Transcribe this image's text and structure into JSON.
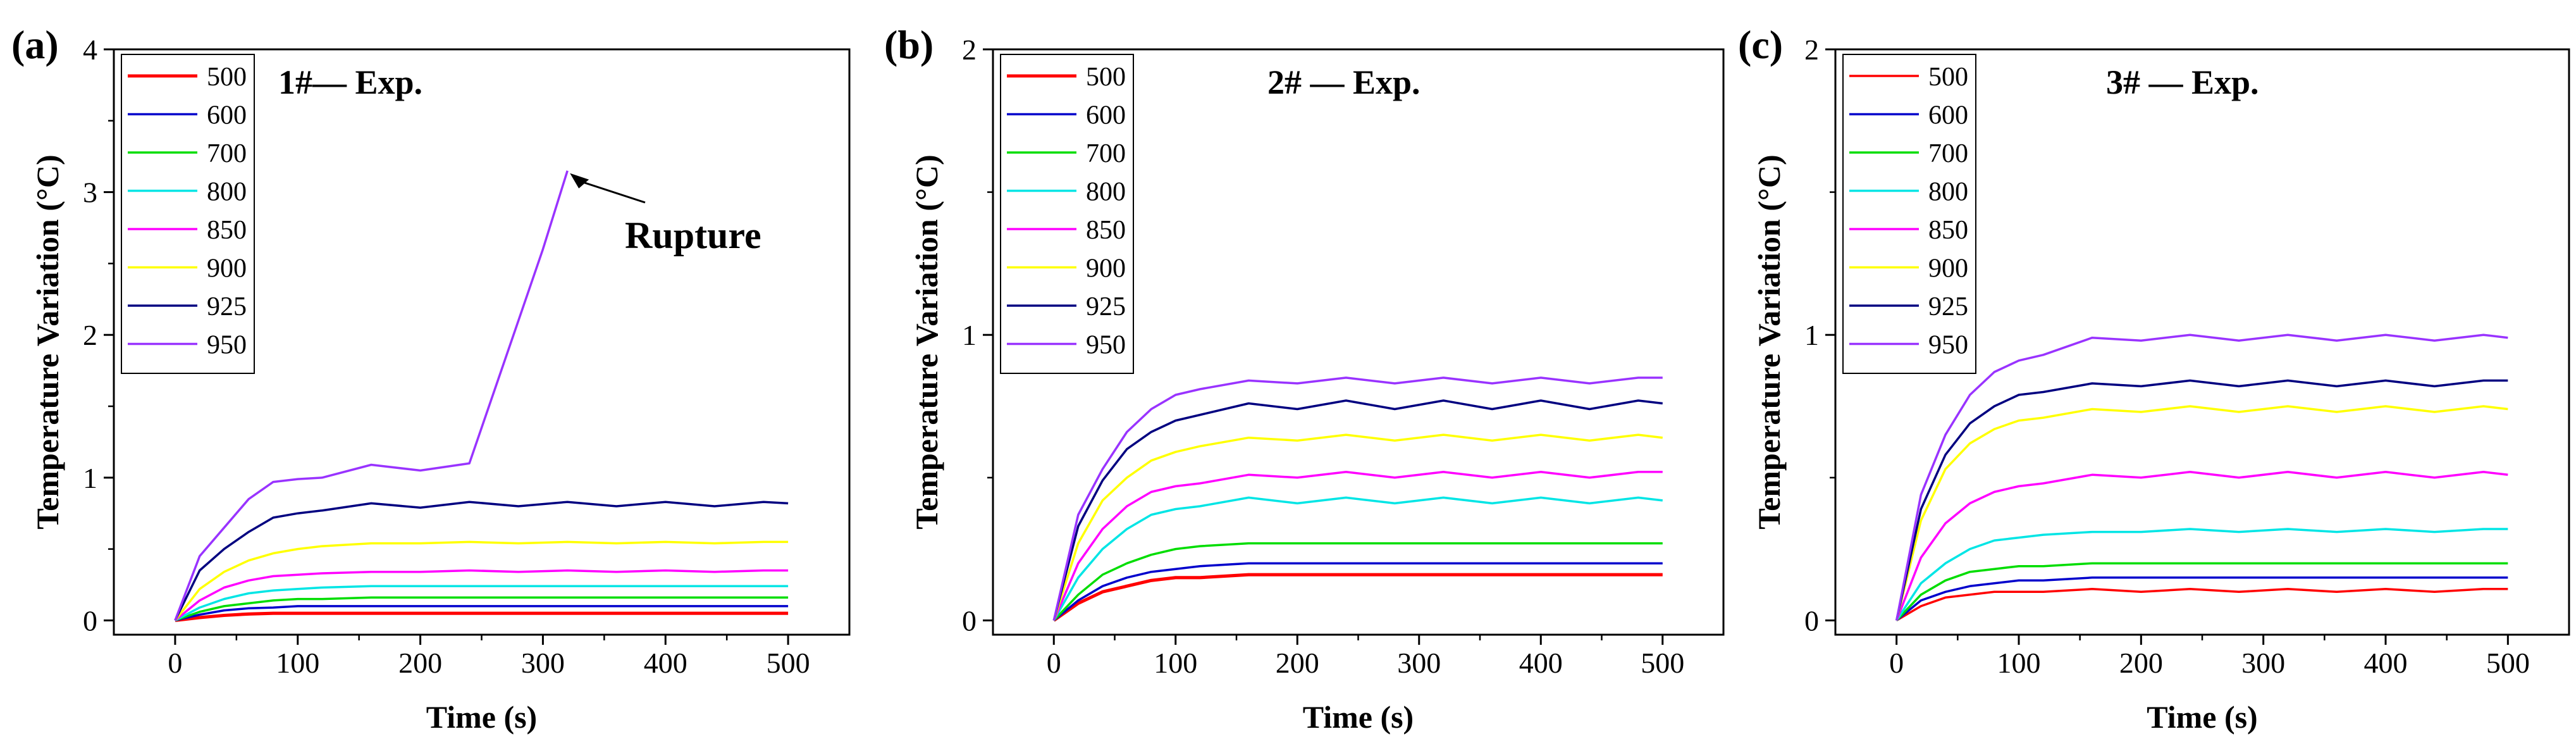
{
  "figure": {
    "description_free": true
  },
  "chart_data": [
    {
      "panel_label": "(a)",
      "type": "line",
      "annotation_title": "1#— Exp.",
      "xlabel": "Time (s)",
      "ylabel": "Temperature Variation (°C)",
      "xlim": [
        -50,
        550
      ],
      "ylim": [
        -0.1,
        4
      ],
      "xticks": [
        0,
        100,
        200,
        300,
        400,
        500
      ],
      "yticks": [
        0,
        1,
        2,
        3,
        4
      ],
      "callout": {
        "text": "Rupture",
        "x": 320,
        "y": 3.15
      },
      "legend_position": "top-left",
      "series": [
        {
          "name": "500",
          "color": "#ff0000",
          "width": 3.2,
          "x": [
            0,
            20,
            40,
            60,
            80,
            100,
            120,
            160,
            200,
            240,
            280,
            320,
            360,
            400,
            440,
            480,
            500
          ],
          "y": [
            0,
            0.02,
            0.035,
            0.045,
            0.05,
            0.05,
            0.05,
            0.05,
            0.05,
            0.05,
            0.05,
            0.05,
            0.05,
            0.05,
            0.05,
            0.05,
            0.05
          ]
        },
        {
          "name": "600",
          "color": "#0000cc",
          "width": 2.2,
          "x": [
            0,
            20,
            40,
            60,
            80,
            100,
            120,
            160,
            200,
            240,
            280,
            320,
            360,
            400,
            440,
            480,
            500
          ],
          "y": [
            0,
            0.04,
            0.07,
            0.085,
            0.09,
            0.1,
            0.1,
            0.1,
            0.1,
            0.1,
            0.1,
            0.1,
            0.1,
            0.1,
            0.1,
            0.1,
            0.1
          ]
        },
        {
          "name": "700",
          "color": "#00dd00",
          "width": 2.2,
          "x": [
            0,
            20,
            40,
            60,
            80,
            100,
            120,
            160,
            200,
            240,
            280,
            320,
            360,
            400,
            440,
            480,
            500
          ],
          "y": [
            0,
            0.06,
            0.1,
            0.12,
            0.14,
            0.15,
            0.15,
            0.16,
            0.16,
            0.16,
            0.16,
            0.16,
            0.16,
            0.16,
            0.16,
            0.16,
            0.16
          ]
        },
        {
          "name": "800",
          "color": "#00e5e5",
          "width": 2.2,
          "x": [
            0,
            20,
            40,
            60,
            80,
            100,
            120,
            160,
            200,
            240,
            280,
            320,
            360,
            400,
            440,
            480,
            500
          ],
          "y": [
            0,
            0.09,
            0.15,
            0.19,
            0.21,
            0.22,
            0.23,
            0.24,
            0.24,
            0.24,
            0.24,
            0.24,
            0.24,
            0.24,
            0.24,
            0.24,
            0.24
          ]
        },
        {
          "name": "850",
          "color": "#ff00ff",
          "width": 2.2,
          "x": [
            0,
            20,
            40,
            60,
            80,
            100,
            120,
            160,
            200,
            240,
            280,
            320,
            360,
            400,
            440,
            480,
            500
          ],
          "y": [
            0,
            0.14,
            0.23,
            0.28,
            0.31,
            0.32,
            0.33,
            0.34,
            0.34,
            0.35,
            0.34,
            0.35,
            0.34,
            0.35,
            0.34,
            0.35,
            0.35
          ]
        },
        {
          "name": "900",
          "color": "#ffff00",
          "width": 2.2,
          "x": [
            0,
            20,
            40,
            60,
            80,
            100,
            120,
            160,
            200,
            240,
            280,
            320,
            360,
            400,
            440,
            480,
            500
          ],
          "y": [
            0,
            0.22,
            0.34,
            0.42,
            0.47,
            0.5,
            0.52,
            0.54,
            0.54,
            0.55,
            0.54,
            0.55,
            0.54,
            0.55,
            0.54,
            0.55,
            0.55
          ]
        },
        {
          "name": "925",
          "color": "#000080",
          "width": 2.2,
          "x": [
            0,
            20,
            40,
            60,
            80,
            100,
            120,
            160,
            200,
            240,
            280,
            320,
            360,
            400,
            440,
            480,
            500
          ],
          "y": [
            0,
            0.35,
            0.5,
            0.62,
            0.72,
            0.75,
            0.77,
            0.82,
            0.79,
            0.83,
            0.8,
            0.83,
            0.8,
            0.83,
            0.8,
            0.83,
            0.82
          ]
        },
        {
          "name": "950",
          "color": "#9933ff",
          "width": 2.2,
          "x": [
            0,
            20,
            40,
            60,
            80,
            100,
            120,
            160,
            200,
            240,
            260,
            280,
            300,
            320
          ],
          "y": [
            0,
            0.45,
            0.65,
            0.85,
            0.97,
            0.99,
            1.0,
            1.09,
            1.05,
            1.1,
            1.6,
            2.1,
            2.6,
            3.15
          ]
        }
      ]
    },
    {
      "panel_label": "(b)",
      "type": "line",
      "annotation_title": "2# — Exp.",
      "xlabel": "Time (s)",
      "ylabel": "Temperature Variation (°C)",
      "xlim": [
        -50,
        550
      ],
      "ylim": [
        -0.05,
        2
      ],
      "xticks": [
        0,
        100,
        200,
        300,
        400,
        500
      ],
      "yticks": [
        0,
        1,
        2
      ],
      "legend_position": "top-left",
      "series": [
        {
          "name": "500",
          "color": "#ff0000",
          "width": 3.2,
          "x": [
            0,
            20,
            40,
            60,
            80,
            100,
            120,
            160,
            200,
            240,
            280,
            320,
            360,
            400,
            440,
            480,
            500
          ],
          "y": [
            0,
            0.06,
            0.1,
            0.12,
            0.14,
            0.15,
            0.15,
            0.16,
            0.16,
            0.16,
            0.16,
            0.16,
            0.16,
            0.16,
            0.16,
            0.16,
            0.16
          ]
        },
        {
          "name": "600",
          "color": "#0000cc",
          "width": 2.2,
          "x": [
            0,
            20,
            40,
            60,
            80,
            100,
            120,
            160,
            200,
            240,
            280,
            320,
            360,
            400,
            440,
            480,
            500
          ],
          "y": [
            0,
            0.07,
            0.12,
            0.15,
            0.17,
            0.18,
            0.19,
            0.2,
            0.2,
            0.2,
            0.2,
            0.2,
            0.2,
            0.2,
            0.2,
            0.2,
            0.2
          ]
        },
        {
          "name": "700",
          "color": "#00dd00",
          "width": 2.2,
          "x": [
            0,
            20,
            40,
            60,
            80,
            100,
            120,
            160,
            200,
            240,
            280,
            320,
            360,
            400,
            440,
            480,
            500
          ],
          "y": [
            0,
            0.09,
            0.16,
            0.2,
            0.23,
            0.25,
            0.26,
            0.27,
            0.27,
            0.27,
            0.27,
            0.27,
            0.27,
            0.27,
            0.27,
            0.27,
            0.27
          ]
        },
        {
          "name": "800",
          "color": "#00e5e5",
          "width": 2.2,
          "x": [
            0,
            20,
            40,
            60,
            80,
            100,
            120,
            160,
            200,
            240,
            280,
            320,
            360,
            400,
            440,
            480,
            500
          ],
          "y": [
            0,
            0.15,
            0.25,
            0.32,
            0.37,
            0.39,
            0.4,
            0.43,
            0.41,
            0.43,
            0.41,
            0.43,
            0.41,
            0.43,
            0.41,
            0.43,
            0.42
          ]
        },
        {
          "name": "850",
          "color": "#ff00ff",
          "width": 2.2,
          "x": [
            0,
            20,
            40,
            60,
            80,
            100,
            120,
            160,
            200,
            240,
            280,
            320,
            360,
            400,
            440,
            480,
            500
          ],
          "y": [
            0,
            0.2,
            0.32,
            0.4,
            0.45,
            0.47,
            0.48,
            0.51,
            0.5,
            0.52,
            0.5,
            0.52,
            0.5,
            0.52,
            0.5,
            0.52,
            0.52
          ]
        },
        {
          "name": "900",
          "color": "#ffff00",
          "width": 2.2,
          "x": [
            0,
            20,
            40,
            60,
            80,
            100,
            120,
            160,
            200,
            240,
            280,
            320,
            360,
            400,
            440,
            480,
            500
          ],
          "y": [
            0,
            0.27,
            0.42,
            0.5,
            0.56,
            0.59,
            0.61,
            0.64,
            0.63,
            0.65,
            0.63,
            0.65,
            0.63,
            0.65,
            0.63,
            0.65,
            0.64
          ]
        },
        {
          "name": "925",
          "color": "#000080",
          "width": 2.2,
          "x": [
            0,
            20,
            40,
            60,
            80,
            100,
            120,
            160,
            200,
            240,
            280,
            320,
            360,
            400,
            440,
            480,
            500
          ],
          "y": [
            0,
            0.33,
            0.49,
            0.6,
            0.66,
            0.7,
            0.72,
            0.76,
            0.74,
            0.77,
            0.74,
            0.77,
            0.74,
            0.77,
            0.74,
            0.77,
            0.76
          ]
        },
        {
          "name": "950",
          "color": "#9933ff",
          "width": 2.2,
          "x": [
            0,
            20,
            40,
            60,
            80,
            100,
            120,
            160,
            200,
            240,
            280,
            320,
            360,
            400,
            440,
            480,
            500
          ],
          "y": [
            0,
            0.37,
            0.53,
            0.66,
            0.74,
            0.79,
            0.81,
            0.84,
            0.83,
            0.85,
            0.83,
            0.85,
            0.83,
            0.85,
            0.83,
            0.85,
            0.85
          ]
        }
      ]
    },
    {
      "panel_label": "(c)",
      "type": "line",
      "annotation_title": "3# — Exp.",
      "xlabel": "Time (s)",
      "ylabel": "Temperature Variation (°C)",
      "xlim": [
        -50,
        550
      ],
      "ylim": [
        -0.05,
        2
      ],
      "xticks": [
        0,
        100,
        200,
        300,
        400,
        500
      ],
      "yticks": [
        0,
        1,
        2
      ],
      "legend_position": "top-left",
      "series": [
        {
          "name": "500",
          "color": "#ff0000",
          "width": 2.2,
          "x": [
            0,
            20,
            40,
            60,
            80,
            100,
            120,
            160,
            200,
            240,
            280,
            320,
            360,
            400,
            440,
            480,
            500
          ],
          "y": [
            0,
            0.05,
            0.08,
            0.09,
            0.1,
            0.1,
            0.1,
            0.11,
            0.1,
            0.11,
            0.1,
            0.11,
            0.1,
            0.11,
            0.1,
            0.11,
            0.11
          ]
        },
        {
          "name": "600",
          "color": "#0000cc",
          "width": 2.2,
          "x": [
            0,
            20,
            40,
            60,
            80,
            100,
            120,
            160,
            200,
            240,
            280,
            320,
            360,
            400,
            440,
            480,
            500
          ],
          "y": [
            0,
            0.07,
            0.1,
            0.12,
            0.13,
            0.14,
            0.14,
            0.15,
            0.15,
            0.15,
            0.15,
            0.15,
            0.15,
            0.15,
            0.15,
            0.15,
            0.15
          ]
        },
        {
          "name": "700",
          "color": "#00dd00",
          "width": 2.2,
          "x": [
            0,
            20,
            40,
            60,
            80,
            100,
            120,
            160,
            200,
            240,
            280,
            320,
            360,
            400,
            440,
            480,
            500
          ],
          "y": [
            0,
            0.09,
            0.14,
            0.17,
            0.18,
            0.19,
            0.19,
            0.2,
            0.2,
            0.2,
            0.2,
            0.2,
            0.2,
            0.2,
            0.2,
            0.2,
            0.2
          ]
        },
        {
          "name": "800",
          "color": "#00e5e5",
          "width": 2.2,
          "x": [
            0,
            20,
            40,
            60,
            80,
            100,
            120,
            160,
            200,
            240,
            280,
            320,
            360,
            400,
            440,
            480,
            500
          ],
          "y": [
            0,
            0.13,
            0.2,
            0.25,
            0.28,
            0.29,
            0.3,
            0.31,
            0.31,
            0.32,
            0.31,
            0.32,
            0.31,
            0.32,
            0.31,
            0.32,
            0.32
          ]
        },
        {
          "name": "850",
          "color": "#ff00ff",
          "width": 2.2,
          "x": [
            0,
            20,
            40,
            60,
            80,
            100,
            120,
            160,
            200,
            240,
            280,
            320,
            360,
            400,
            440,
            480,
            500
          ],
          "y": [
            0,
            0.22,
            0.34,
            0.41,
            0.45,
            0.47,
            0.48,
            0.51,
            0.5,
            0.52,
            0.5,
            0.52,
            0.5,
            0.52,
            0.5,
            0.52,
            0.51
          ]
        },
        {
          "name": "900",
          "color": "#ffff00",
          "width": 2.2,
          "x": [
            0,
            20,
            40,
            60,
            80,
            100,
            120,
            160,
            200,
            240,
            280,
            320,
            360,
            400,
            440,
            480,
            500
          ],
          "y": [
            0,
            0.35,
            0.53,
            0.62,
            0.67,
            0.7,
            0.71,
            0.74,
            0.73,
            0.75,
            0.73,
            0.75,
            0.73,
            0.75,
            0.73,
            0.75,
            0.74
          ]
        },
        {
          "name": "925",
          "color": "#000080",
          "width": 2.2,
          "x": [
            0,
            20,
            40,
            60,
            80,
            100,
            120,
            160,
            200,
            240,
            280,
            320,
            360,
            400,
            440,
            480,
            500
          ],
          "y": [
            0,
            0.39,
            0.58,
            0.69,
            0.75,
            0.79,
            0.8,
            0.83,
            0.82,
            0.84,
            0.82,
            0.84,
            0.82,
            0.84,
            0.82,
            0.84,
            0.84
          ]
        },
        {
          "name": "950",
          "color": "#9933ff",
          "width": 2.2,
          "x": [
            0,
            20,
            40,
            60,
            80,
            100,
            120,
            160,
            200,
            240,
            280,
            320,
            360,
            400,
            440,
            480,
            500
          ],
          "y": [
            0,
            0.44,
            0.65,
            0.79,
            0.87,
            0.91,
            0.93,
            0.99,
            0.98,
            1.0,
            0.98,
            1.0,
            0.98,
            1.0,
            0.98,
            1.0,
            0.99
          ]
        }
      ]
    }
  ]
}
